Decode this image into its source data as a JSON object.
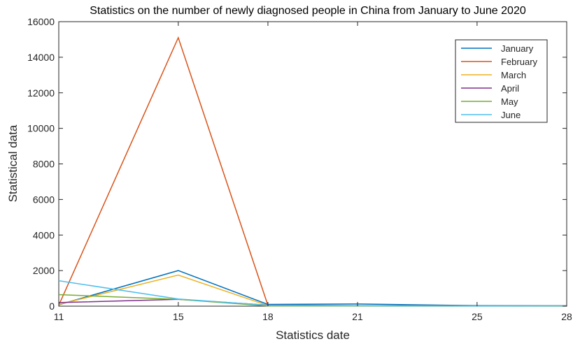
{
  "chart_data": {
    "type": "line",
    "title": "Statistics on the number of newly diagnosed people in China from January to June 2020",
    "xlabel": "Statistics date",
    "ylabel": "Statistical data",
    "x": [
      11,
      15,
      18,
      21,
      25,
      28
    ],
    "xticks": [
      "11",
      "15",
      "18",
      "21",
      "25",
      "28"
    ],
    "ylim": [
      0,
      16000
    ],
    "yticks": [
      "0",
      "2000",
      "4000",
      "6000",
      "8000",
      "10000",
      "12000",
      "14000",
      "16000"
    ],
    "grid": false,
    "legend_position": "top-right",
    "series": [
      {
        "name": "January",
        "color": "#0072BD",
        "values": [
          80,
          2000,
          100,
          120,
          30,
          20
        ]
      },
      {
        "name": "February",
        "color": "#D95319",
        "values": [
          50,
          15100,
          50,
          20,
          10,
          10
        ]
      },
      {
        "name": "March",
        "color": "#EDB120",
        "values": [
          100,
          1750,
          30,
          30,
          10,
          10
        ]
      },
      {
        "name": "April",
        "color": "#7E2F8E",
        "values": [
          200,
          380,
          60,
          30,
          10,
          20
        ]
      },
      {
        "name": "May",
        "color": "#77AC30",
        "values": [
          650,
          380,
          10,
          10,
          5,
          5
        ]
      },
      {
        "name": "June",
        "color": "#4DBEEE",
        "values": [
          1430,
          400,
          50,
          30,
          10,
          20
        ]
      }
    ]
  }
}
